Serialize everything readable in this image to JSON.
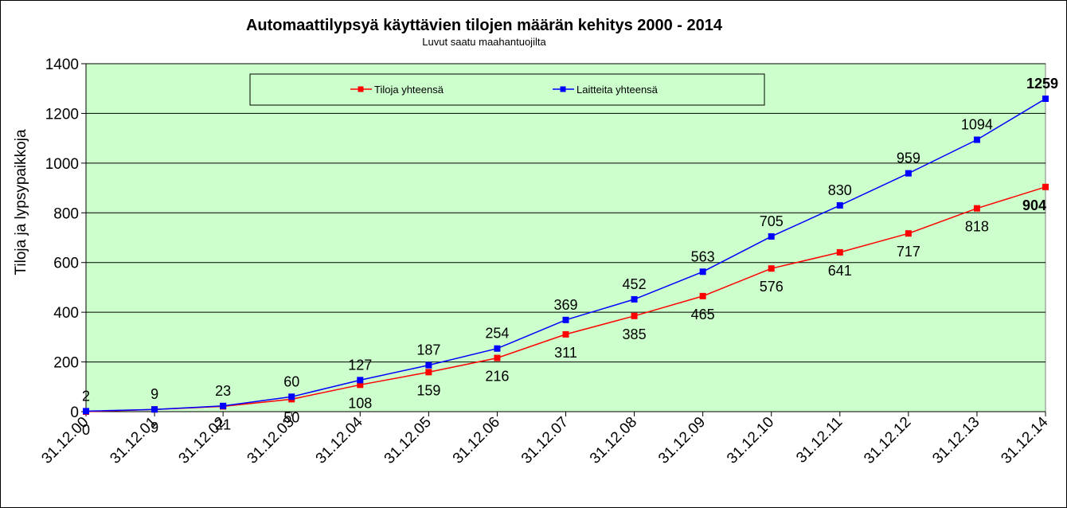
{
  "chart_data": {
    "type": "line",
    "title": "Automaattilypsyä käyttävien tilojen määrän kehitys 2000 - 2014",
    "subtitle": "Luvut  saatu maahantuojilta",
    "ylabel": "Tiloja ja lypsypaikkoja",
    "xlabel": "",
    "ylim": [
      0,
      1400
    ],
    "yticks": [
      "0",
      "200",
      "400",
      "600",
      "800",
      "1000",
      "1200",
      "1400"
    ],
    "ytick_values": [
      0,
      200,
      400,
      600,
      800,
      1000,
      1200,
      1400
    ],
    "categories": [
      "31.12.00",
      "31.12.01",
      "31.12.02",
      "31.12.03",
      "31.12.04",
      "31.12.05",
      "31.12.06",
      "31.12.07",
      "31.12.08",
      "31.12.09",
      "31.12.10",
      "31.12.11",
      "31.12.12",
      "31.12.13",
      "31.12.14"
    ],
    "grid": true,
    "legend_position": "top",
    "plot_background": "#ccffcc",
    "series": [
      {
        "name": "Tiloja yhteensä",
        "color": "#ff0000",
        "values": [
          0,
          9,
          21,
          50,
          108,
          159,
          216,
          311,
          385,
          465,
          576,
          641,
          717,
          818,
          904
        ],
        "labels": [
          "0",
          "9",
          "21",
          "50",
          "108",
          "159",
          "216",
          "311",
          "385",
          "465",
          "576",
          "641",
          "717",
          "818",
          "904"
        ]
      },
      {
        "name": "Laitteita yhteensä",
        "color": "#0000ff",
        "values": [
          2,
          9,
          23,
          60,
          127,
          187,
          254,
          369,
          452,
          563,
          705,
          830,
          959,
          1094,
          1259
        ],
        "labels": [
          "2",
          "9",
          "23",
          "60",
          "127",
          "187",
          "254",
          "369",
          "452",
          "563",
          "705",
          "830",
          "959",
          "1094",
          "1259"
        ]
      }
    ]
  }
}
